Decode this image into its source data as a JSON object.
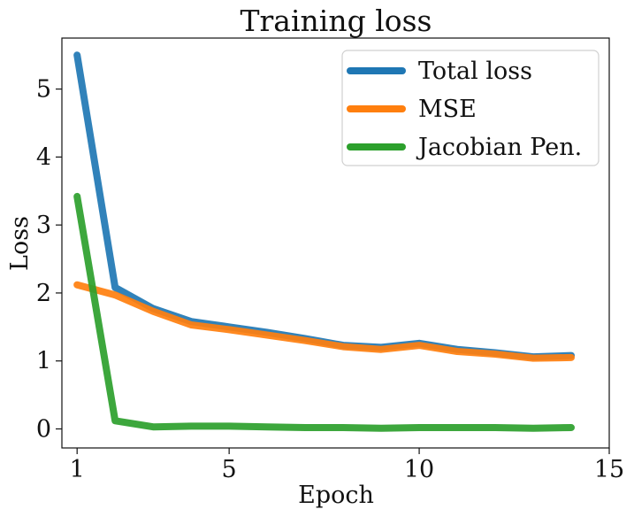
{
  "chart_data": {
    "type": "line",
    "title": "Training loss",
    "xlabel": "Epoch",
    "ylabel": "Loss",
    "xlim": [
      0.6,
      15
    ],
    "ylim": [
      -0.28,
      5.75
    ],
    "xticks": [
      1,
      5,
      10,
      15
    ],
    "yticks": [
      0,
      1,
      2,
      3,
      4,
      5
    ],
    "grid": false,
    "legend_position": "top-right",
    "x": [
      1,
      2,
      3,
      4,
      5,
      6,
      7,
      8,
      9,
      10,
      11,
      12,
      13,
      14
    ],
    "series": [
      {
        "name": "Total loss",
        "color": "#1f77b4",
        "values": [
          5.5,
          2.08,
          1.77,
          1.58,
          1.5,
          1.42,
          1.33,
          1.23,
          1.2,
          1.26,
          1.17,
          1.12,
          1.06,
          1.08
        ]
      },
      {
        "name": "MSE",
        "color": "#ff7f0e",
        "values": [
          2.12,
          1.97,
          1.73,
          1.53,
          1.46,
          1.38,
          1.3,
          1.21,
          1.17,
          1.23,
          1.14,
          1.1,
          1.04,
          1.05
        ]
      },
      {
        "name": "Jacobian Pen.",
        "color": "#2ca02c",
        "values": [
          3.42,
          0.12,
          0.03,
          0.04,
          0.04,
          0.03,
          0.02,
          0.02,
          0.01,
          0.02,
          0.02,
          0.02,
          0.01,
          0.02
        ]
      }
    ]
  }
}
